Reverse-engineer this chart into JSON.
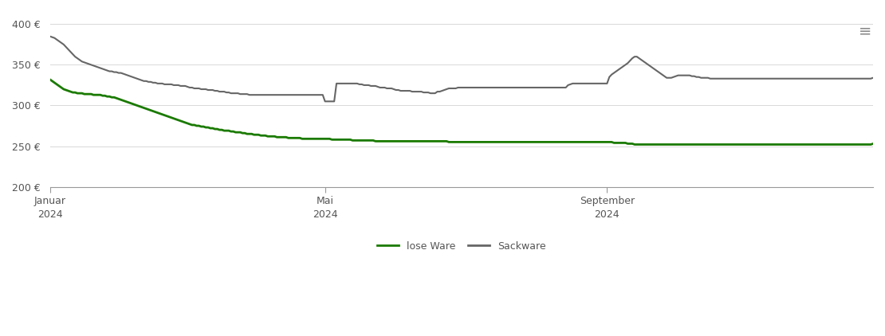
{
  "background_color": "#ffffff",
  "ylim": [
    200,
    415
  ],
  "yticks": [
    200,
    250,
    300,
    350,
    400
  ],
  "ytick_labels": [
    "200 €",
    "250 €",
    "300 €",
    "350 €",
    "400 €"
  ],
  "xtick_labels": [
    "Januar\n2024",
    "Mai\n2024",
    "September\n2024"
  ],
  "xtick_positions": [
    0,
    120,
    243
  ],
  "grid_color": "#d8d8d8",
  "lose_ware_color": "#1a7a00",
  "sackware_color": "#666666",
  "legend_lose": "lose Ware",
  "legend_sack": "Sackware",
  "lose_ware": [
    332,
    330,
    328,
    326,
    324,
    322,
    320,
    319,
    318,
    317,
    316,
    316,
    315,
    315,
    315,
    314,
    314,
    314,
    314,
    313,
    313,
    313,
    313,
    312,
    312,
    311,
    311,
    310,
    310,
    309,
    308,
    307,
    306,
    305,
    304,
    303,
    302,
    301,
    300,
    299,
    298,
    297,
    296,
    295,
    294,
    293,
    292,
    291,
    290,
    289,
    288,
    287,
    286,
    285,
    284,
    283,
    282,
    281,
    280,
    279,
    278,
    277,
    276,
    276,
    275,
    275,
    274,
    274,
    273,
    273,
    272,
    272,
    271,
    271,
    270,
    270,
    269,
    269,
    269,
    268,
    268,
    267,
    267,
    267,
    266,
    266,
    265,
    265,
    265,
    264,
    264,
    264,
    263,
    263,
    263,
    262,
    262,
    262,
    262,
    261,
    261,
    261,
    261,
    261,
    260,
    260,
    260,
    260,
    260,
    260,
    259,
    259,
    259,
    259,
    259,
    259,
    259,
    259,
    259,
    259,
    259,
    259,
    259,
    258,
    258,
    258,
    258,
    258,
    258,
    258,
    258,
    258,
    257,
    257,
    257,
    257,
    257,
    257,
    257,
    257,
    257,
    257,
    256,
    256,
    256,
    256,
    256,
    256,
    256,
    256,
    256,
    256,
    256,
    256,
    256,
    256,
    256,
    256,
    256,
    256,
    256,
    256,
    256,
    256,
    256,
    256,
    256,
    256,
    256,
    256,
    256,
    256,
    256,
    256,
    255,
    255,
    255,
    255,
    255,
    255,
    255,
    255,
    255,
    255,
    255,
    255,
    255,
    255,
    255,
    255,
    255,
    255,
    255,
    255,
    255,
    255,
    255,
    255,
    255,
    255,
    255,
    255,
    255,
    255,
    255,
    255,
    255,
    255,
    255,
    255,
    255,
    255,
    255,
    255,
    255,
    255,
    255,
    255,
    255,
    255,
    255,
    255,
    255,
    255,
    255,
    255,
    255,
    255,
    255,
    255,
    255,
    255,
    255,
    255,
    255,
    255,
    255,
    255,
    255,
    255,
    255,
    255,
    255,
    255,
    255,
    255,
    254,
    254,
    254,
    254,
    254,
    254,
    253,
    253,
    253,
    252,
    252,
    252,
    252,
    252,
    252,
    252,
    252,
    252,
    252,
    252,
    252,
    252,
    252,
    252,
    252,
    252,
    252,
    252,
    252,
    252,
    252,
    252,
    252,
    252,
    252,
    252,
    252,
    252,
    252,
    252,
    252,
    252,
    252,
    252,
    252,
    252,
    252,
    252,
    252,
    252,
    252,
    252,
    252,
    252,
    252,
    252,
    252,
    252,
    252,
    252,
    252,
    252,
    252,
    252,
    252,
    252,
    252,
    252,
    252,
    252,
    252,
    252,
    252,
    252,
    252,
    252,
    252,
    252,
    252,
    252,
    252,
    252,
    252,
    252,
    252,
    252,
    252,
    252,
    252,
    252,
    252,
    252,
    252,
    252,
    252,
    252,
    252,
    252,
    252,
    252,
    252,
    252,
    252,
    252,
    252,
    252,
    252,
    252,
    252,
    252,
    252,
    252,
    252,
    253
  ],
  "sackware": [
    385,
    384,
    383,
    381,
    379,
    377,
    375,
    372,
    369,
    366,
    363,
    360,
    358,
    356,
    354,
    353,
    352,
    351,
    350,
    349,
    348,
    347,
    346,
    345,
    344,
    343,
    342,
    342,
    341,
    341,
    340,
    340,
    339,
    338,
    337,
    336,
    335,
    334,
    333,
    332,
    331,
    330,
    330,
    329,
    329,
    328,
    328,
    327,
    327,
    327,
    326,
    326,
    326,
    326,
    325,
    325,
    325,
    324,
    324,
    324,
    323,
    322,
    322,
    321,
    321,
    321,
    320,
    320,
    320,
    319,
    319,
    319,
    318,
    318,
    317,
    317,
    317,
    316,
    316,
    315,
    315,
    315,
    315,
    314,
    314,
    314,
    314,
    313,
    313,
    313,
    313,
    313,
    313,
    313,
    313,
    313,
    313,
    313,
    313,
    313,
    313,
    313,
    313,
    313,
    313,
    313,
    313,
    313,
    313,
    313,
    313,
    313,
    313,
    313,
    313,
    313,
    313,
    313,
    313,
    313,
    305,
    305,
    305,
    305,
    305,
    327,
    327,
    327,
    327,
    327,
    327,
    327,
    327,
    327,
    327,
    326,
    326,
    325,
    325,
    325,
    324,
    324,
    324,
    323,
    322,
    322,
    322,
    321,
    321,
    321,
    320,
    319,
    319,
    318,
    318,
    318,
    318,
    318,
    317,
    317,
    317,
    317,
    317,
    316,
    316,
    316,
    315,
    315,
    315,
    317,
    317,
    318,
    319,
    320,
    321,
    321,
    321,
    321,
    322,
    322,
    322,
    322,
    322,
    322,
    322,
    322,
    322,
    322,
    322,
    322,
    322,
    322,
    322,
    322,
    322,
    322,
    322,
    322,
    322,
    322,
    322,
    322,
    322,
    322,
    322,
    322,
    322,
    322,
    322,
    322,
    322,
    322,
    322,
    322,
    322,
    322,
    322,
    322,
    322,
    322,
    322,
    322,
    322,
    322,
    322,
    322,
    325,
    326,
    327,
    327,
    327,
    327,
    327,
    327,
    327,
    327,
    327,
    327,
    327,
    327,
    327,
    327,
    327,
    327,
    335,
    338,
    340,
    342,
    344,
    346,
    348,
    350,
    352,
    355,
    358,
    360,
    360,
    358,
    356,
    354,
    352,
    350,
    348,
    346,
    344,
    342,
    340,
    338,
    336,
    334,
    334,
    334,
    335,
    336,
    337,
    337,
    337,
    337,
    337,
    337,
    336,
    336,
    335,
    335,
    334,
    334,
    334,
    334,
    333,
    333,
    333,
    333,
    333,
    333,
    333,
    333,
    333,
    333,
    333,
    333,
    333,
    333,
    333,
    333,
    333,
    333,
    333,
    333,
    333,
    333,
    333,
    333,
    333,
    333,
    333,
    333,
    333,
    333,
    333,
    333,
    333,
    333,
    333,
    333,
    333,
    333,
    333,
    333,
    333,
    333,
    333,
    333,
    333,
    333,
    333,
    333,
    333,
    333,
    333,
    333,
    333,
    333,
    333,
    333,
    333,
    333,
    333,
    333,
    333,
    333,
    333,
    333,
    333,
    333,
    333,
    333,
    333,
    333,
    333,
    334
  ]
}
